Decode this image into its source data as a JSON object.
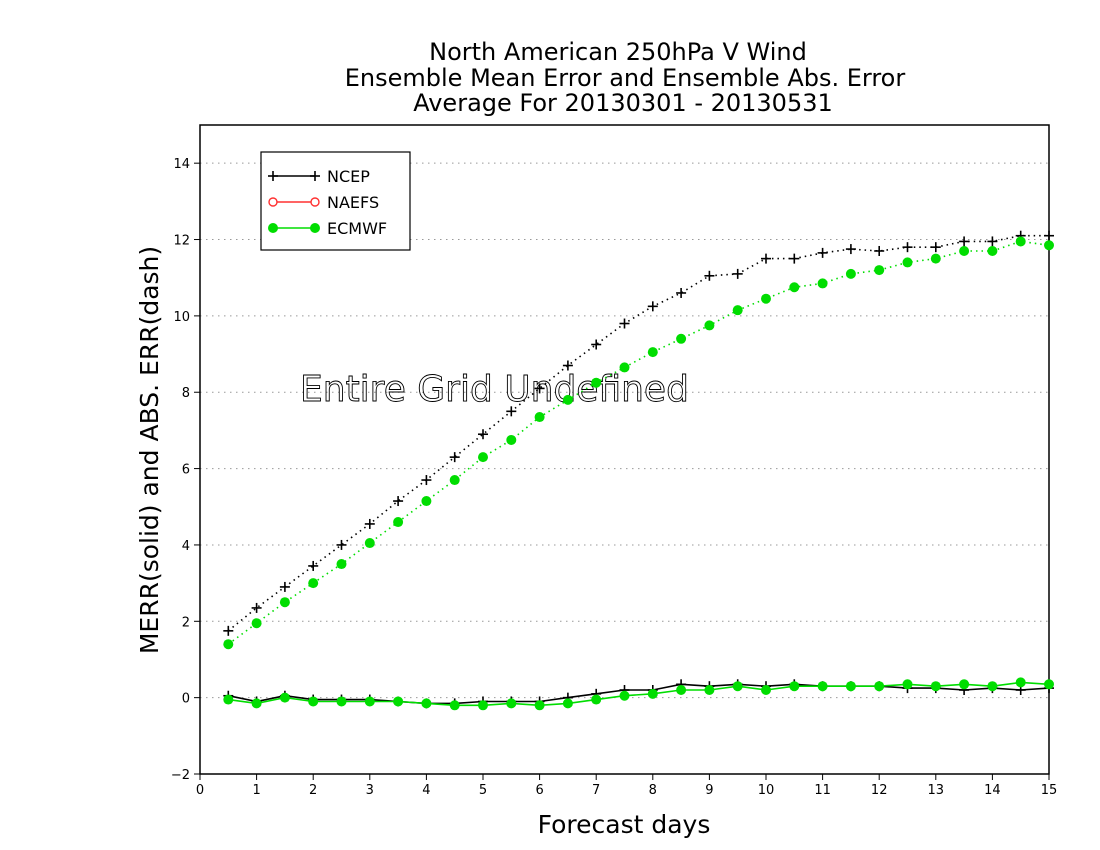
{
  "chart_data": {
    "type": "line",
    "title_lines": [
      "North American 250hPa V Wind",
      "Ensemble Mean Error and Ensemble Abs. Error",
      "Average For 20130301 - 20130531"
    ],
    "xlabel": "Forecast days",
    "ylabel": "MERR(solid) and ABS. ERR(dash)",
    "annotation": "Entire Grid Undefined",
    "xlim": [
      0,
      15
    ],
    "ylim": [
      -2,
      15
    ],
    "xticks": [
      0,
      1,
      2,
      3,
      4,
      5,
      6,
      7,
      8,
      9,
      10,
      11,
      12,
      13,
      14,
      15
    ],
    "yticks": [
      -2,
      0,
      2,
      4,
      6,
      8,
      10,
      12,
      14
    ],
    "grid": "horizontal dotted",
    "legend": {
      "position": "top-left",
      "entries": [
        {
          "name": "NCEP",
          "color": "#000000",
          "marker": "plus"
        },
        {
          "name": "NAEFS",
          "color": "#ff3030",
          "marker": "open-circle"
        },
        {
          "name": "ECMWF",
          "color": "#00dd00",
          "marker": "filled-circle"
        }
      ]
    },
    "x": [
      0.5,
      1.0,
      1.5,
      2.0,
      2.5,
      3.0,
      3.5,
      4.0,
      4.5,
      5.0,
      5.5,
      6.0,
      6.5,
      7.0,
      7.5,
      8.0,
      8.5,
      9.0,
      9.5,
      10.0,
      10.5,
      11.0,
      11.5,
      12.0,
      12.5,
      13.0,
      13.5,
      14.0,
      14.5,
      15.0
    ],
    "series": [
      {
        "name": "NCEP",
        "kind": "abs_error",
        "style": "dash",
        "color": "#000000",
        "marker": "plus",
        "values": [
          1.75,
          2.35,
          2.9,
          3.45,
          4.0,
          4.55,
          5.15,
          5.7,
          6.3,
          6.9,
          7.5,
          8.1,
          8.7,
          9.25,
          9.8,
          10.25,
          10.6,
          11.05,
          11.1,
          11.5,
          11.5,
          11.65,
          11.75,
          11.7,
          11.8,
          11.8,
          11.95,
          11.95,
          12.1,
          12.1
        ]
      },
      {
        "name": "ECMWF",
        "kind": "abs_error",
        "style": "dash",
        "color": "#00dd00",
        "marker": "filled-circle",
        "values": [
          1.4,
          1.95,
          2.5,
          3.0,
          3.5,
          4.05,
          4.6,
          5.15,
          5.7,
          6.3,
          6.75,
          7.35,
          7.8,
          8.25,
          8.65,
          9.05,
          9.4,
          9.75,
          10.15,
          10.45,
          10.75,
          10.85,
          11.1,
          11.2,
          11.4,
          11.5,
          11.7,
          11.7,
          11.95,
          11.85
        ]
      },
      {
        "name": "NCEP",
        "kind": "mean_error",
        "style": "solid",
        "color": "#000000",
        "marker": "plus",
        "values": [
          0.05,
          -0.1,
          0.05,
          -0.05,
          -0.05,
          -0.05,
          -0.1,
          -0.15,
          -0.15,
          -0.1,
          -0.1,
          -0.1,
          0.0,
          0.1,
          0.2,
          0.2,
          0.35,
          0.3,
          0.35,
          0.3,
          0.35,
          0.3,
          0.3,
          0.3,
          0.25,
          0.25,
          0.2,
          0.25,
          0.2,
          0.25
        ]
      },
      {
        "name": "ECMWF",
        "kind": "mean_error",
        "style": "solid",
        "color": "#00dd00",
        "marker": "filled-circle",
        "values": [
          -0.05,
          -0.15,
          0.0,
          -0.1,
          -0.1,
          -0.1,
          -0.1,
          -0.15,
          -0.2,
          -0.2,
          -0.15,
          -0.2,
          -0.15,
          -0.05,
          0.05,
          0.1,
          0.2,
          0.2,
          0.3,
          0.2,
          0.3,
          0.3,
          0.3,
          0.3,
          0.35,
          0.3,
          0.35,
          0.3,
          0.4,
          0.35
        ]
      }
    ]
  }
}
